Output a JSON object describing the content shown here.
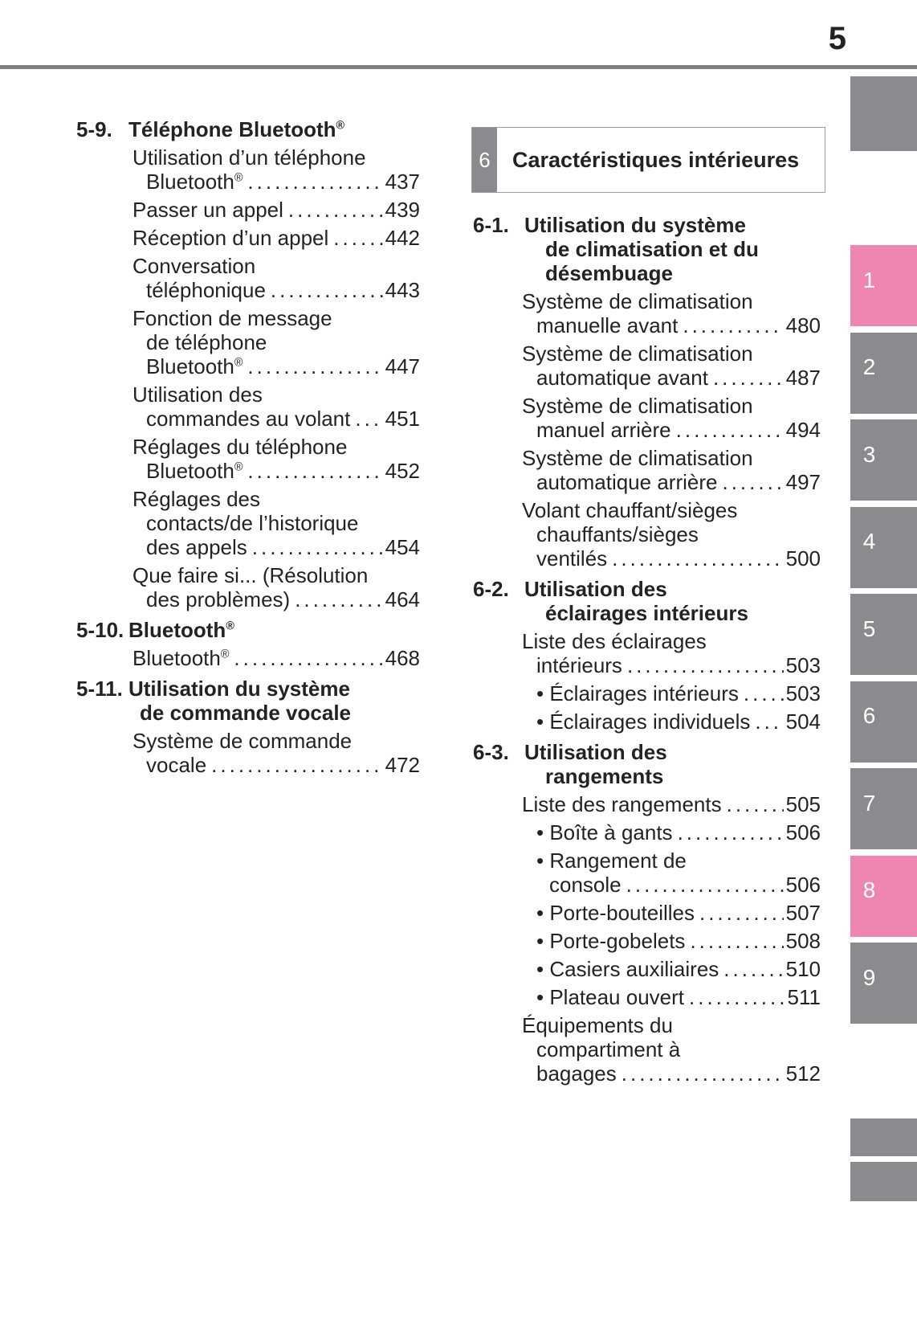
{
  "page_number": "5",
  "colors": {
    "accent_pink": "#ef86b2",
    "tab_gray": "#8a8b8e",
    "rule_gray": "#7d7f82",
    "text": "#232323",
    "box_border": "#9e9e9e"
  },
  "chapter_banner": {
    "number": "6",
    "title": "Caractéristiques intérieures"
  },
  "left_column": {
    "sections": [
      {
        "num": "5-9.",
        "title_lines": [
          "Téléphone Bluetooth®"
        ],
        "entries": [
          {
            "lines": [
              "Utilisation d’un téléphone",
              "Bluetooth®"
            ],
            "page": "437"
          },
          {
            "lines": [
              "Passer un appel"
            ],
            "page": "439"
          },
          {
            "lines": [
              "Réception d’un appel"
            ],
            "page": "442"
          },
          {
            "lines": [
              "Conversation",
              "téléphonique"
            ],
            "page": "443"
          },
          {
            "lines": [
              "Fonction de message",
              "de téléphone",
              "Bluetooth®"
            ],
            "page": "447"
          },
          {
            "lines": [
              "Utilisation des",
              "commandes au volant"
            ],
            "page": "451"
          },
          {
            "lines": [
              "Réglages du téléphone",
              "Bluetooth®"
            ],
            "page": "452"
          },
          {
            "lines": [
              "Réglages des",
              "contacts/de l’historique",
              "des appels"
            ],
            "page": "454"
          },
          {
            "lines": [
              "Que faire si... (Résolution",
              "des problèmes)"
            ],
            "page": "464"
          }
        ]
      },
      {
        "num": "5-10.",
        "title_lines": [
          "Bluetooth®"
        ],
        "entries": [
          {
            "lines": [
              "Bluetooth®"
            ],
            "page": "468"
          }
        ]
      },
      {
        "num": "5-11.",
        "title_lines": [
          "Utilisation du système",
          "de commande vocale"
        ],
        "entries": [
          {
            "lines": [
              "Système de commande",
              "vocale"
            ],
            "page": "472"
          }
        ]
      }
    ]
  },
  "right_column": {
    "sections": [
      {
        "num": "6-1.",
        "title_lines": [
          "Utilisation du système",
          "de climatisation et du",
          "désembuage"
        ],
        "entries": [
          {
            "lines": [
              "Système de climatisation",
              "manuelle avant"
            ],
            "page": "480"
          },
          {
            "lines": [
              "Système de climatisation",
              "automatique avant"
            ],
            "page": "487"
          },
          {
            "lines": [
              "Système de climatisation",
              "manuel arrière"
            ],
            "page": "494"
          },
          {
            "lines": [
              "Système de climatisation",
              "automatique arrière"
            ],
            "page": "497"
          },
          {
            "lines": [
              "Volant chauffant/sièges",
              "chauffants/sièges",
              "ventilés"
            ],
            "page": "500"
          }
        ]
      },
      {
        "num": "6-2.",
        "title_lines": [
          "Utilisation des",
          "éclairages intérieurs"
        ],
        "entries": [
          {
            "lines": [
              "Liste des éclairages",
              "intérieurs"
            ],
            "page": "503"
          },
          {
            "bullet": true,
            "lines": [
              "Éclairages intérieurs"
            ],
            "page": "503"
          },
          {
            "bullet": true,
            "lines": [
              "Éclairages individuels"
            ],
            "page": "504"
          }
        ]
      },
      {
        "num": "6-3.",
        "title_lines": [
          "Utilisation des",
          "rangements"
        ],
        "entries": [
          {
            "lines": [
              "Liste des rangements"
            ],
            "page": "505"
          },
          {
            "bullet": true,
            "lines": [
              "Boîte à gants"
            ],
            "page": "506"
          },
          {
            "bullet": true,
            "lines": [
              "Rangement de",
              "console"
            ],
            "page": "506"
          },
          {
            "bullet": true,
            "lines": [
              "Porte-bouteilles"
            ],
            "page": "507"
          },
          {
            "bullet": true,
            "lines": [
              "Porte-gobelets"
            ],
            "page": "508"
          },
          {
            "bullet": true,
            "lines": [
              "Casiers auxiliaires"
            ],
            "page": "510"
          },
          {
            "bullet": true,
            "lines": [
              "Plateau ouvert"
            ],
            "page": "511"
          },
          {
            "lines": [
              "Équipements du",
              "compartiment à",
              "bagages"
            ],
            "page": "512"
          }
        ]
      }
    ]
  },
  "side_tabs": {
    "tabs": [
      {
        "label": "1",
        "active": true
      },
      {
        "label": "2",
        "active": false
      },
      {
        "label": "3",
        "active": false
      },
      {
        "label": "4",
        "active": false
      },
      {
        "label": "5",
        "active": false
      },
      {
        "label": "6",
        "active": false
      },
      {
        "label": "7",
        "active": false
      },
      {
        "label": "8",
        "active": true
      },
      {
        "label": "9",
        "active": false
      }
    ],
    "unlabeled_top_blocks": 1,
    "unlabeled_bottom_blocks": 2
  }
}
